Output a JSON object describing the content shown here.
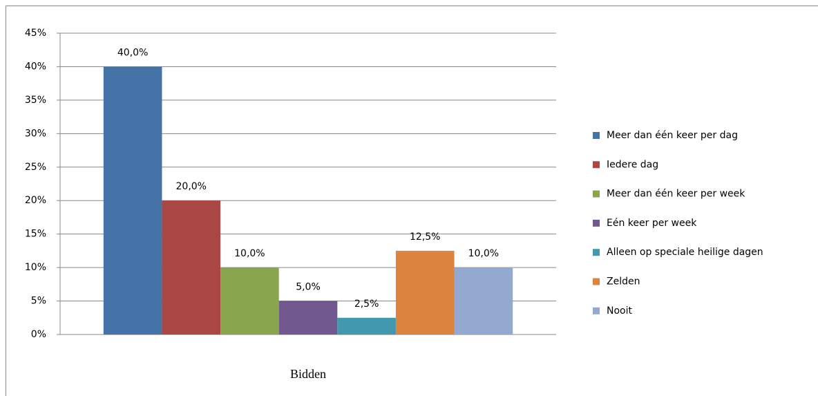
{
  "chart_data": {
    "type": "bar",
    "categories": [
      "Bidden"
    ],
    "series": [
      {
        "name": "Meer dan één keer per dag",
        "color": "#4572a7",
        "values": [
          40
        ],
        "value_labels": [
          "40,0%"
        ]
      },
      {
        "name": "Iedere dag",
        "color": "#aa4643",
        "values": [
          20
        ],
        "value_labels": [
          "20,0%"
        ]
      },
      {
        "name": "Meer dan één keer per week",
        "color": "#89a54e",
        "values": [
          10
        ],
        "value_labels": [
          "10,0%"
        ]
      },
      {
        "name": "Eén keer per week",
        "color": "#71588f",
        "values": [
          5
        ],
        "value_labels": [
          "5,0%"
        ]
      },
      {
        "name": "Alleen op speciale heilige dagen",
        "color": "#4198af",
        "values": [
          2.5
        ],
        "value_labels": [
          "2,5%"
        ]
      },
      {
        "name": "Zelden",
        "color": "#db843d",
        "values": [
          12.5
        ],
        "value_labels": [
          "12,5%"
        ]
      },
      {
        "name": "Nooit",
        "color": "#93a9cf",
        "values": [
          10
        ],
        "value_labels": [
          "10,0%"
        ]
      }
    ],
    "ylim": [
      0,
      45
    ],
    "yticks": [
      {
        "value": 0,
        "label": "0%"
      },
      {
        "value": 5,
        "label": "5%"
      },
      {
        "value": 10,
        "label": "10%"
      },
      {
        "value": 15,
        "label": "15%"
      },
      {
        "value": 20,
        "label": "20%"
      },
      {
        "value": 25,
        "label": "25%"
      },
      {
        "value": 30,
        "label": "30%"
      },
      {
        "value": 35,
        "label": "35%"
      },
      {
        "value": 40,
        "label": "40%"
      },
      {
        "value": 45,
        "label": "45%"
      }
    ],
    "grid": true,
    "legend": "right"
  }
}
